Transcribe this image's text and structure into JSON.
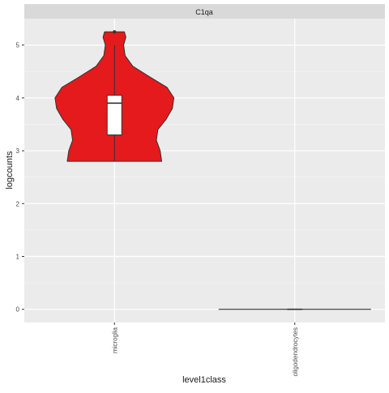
{
  "chart_data": {
    "type": "violin",
    "facet_title": "C1qa",
    "xlabel": "level1class",
    "ylabel": "logcounts",
    "categories": [
      "microglia",
      "oligodendrocytes"
    ],
    "ylim": [
      -0.25,
      5.5
    ],
    "y_ticks": [
      "0",
      "1",
      "2",
      "3",
      "4",
      "5"
    ],
    "y_tick_values": [
      0,
      1,
      2,
      3,
      4,
      5
    ],
    "grid": true,
    "legend": "none",
    "fill_color": "#e41a1c",
    "panel_color": "#ebebeb",
    "strip_color": "#d9d9d9",
    "series": [
      {
        "category": "microglia",
        "boxplot": {
          "min": 2.8,
          "q1": 3.3,
          "median": 3.9,
          "q3": 4.05,
          "max": 5.0,
          "outliers": [
            5.25
          ]
        },
        "density": [
          [
            2.8,
            0.62
          ],
          [
            3.0,
            0.6
          ],
          [
            3.2,
            0.55
          ],
          [
            3.4,
            0.57
          ],
          [
            3.6,
            0.68
          ],
          [
            3.8,
            0.76
          ],
          [
            4.0,
            0.78
          ],
          [
            4.2,
            0.69
          ],
          [
            4.4,
            0.46
          ],
          [
            4.6,
            0.24
          ],
          [
            4.8,
            0.14
          ],
          [
            5.0,
            0.12
          ],
          [
            5.15,
            0.15
          ],
          [
            5.25,
            0.13
          ]
        ]
      },
      {
        "category": "oligodendrocytes",
        "boxplot": {
          "min": 0,
          "q1": 0,
          "median": 0,
          "q3": 0,
          "max": 0,
          "outliers": []
        },
        "density": [
          [
            0,
            1.0
          ]
        ]
      }
    ]
  }
}
